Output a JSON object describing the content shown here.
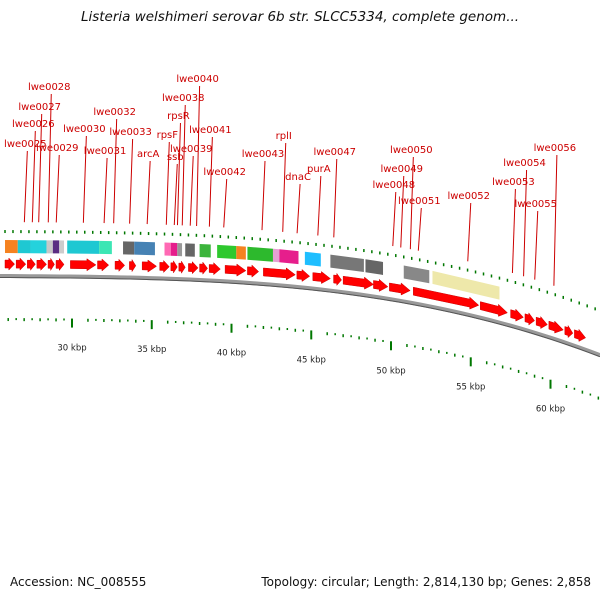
{
  "title": "Listeria welshimeri serovar 6b str. SLCC5334, complete genom...",
  "footer": {
    "accession": "Accession: NC_008555",
    "summary": "Topology: circular; Length: 2,814,130 bp; Genes: 2,858"
  },
  "colors": {
    "label": "#cc0000",
    "gene_arrow": "#ff0000",
    "tick": "#007700",
    "backbone": "#777777"
  },
  "axis": {
    "unit": "kbp",
    "ticks": [
      {
        "kbp": 30,
        "label": "30 kbp"
      },
      {
        "kbp": 35,
        "label": "35 kbp"
      },
      {
        "kbp": 40,
        "label": "40 kbp"
      },
      {
        "kbp": 45,
        "label": "45 kbp"
      },
      {
        "kbp": 50,
        "label": "50 kbp"
      },
      {
        "kbp": 55,
        "label": "55 kbp"
      },
      {
        "kbp": 60,
        "label": "60 kbp"
      }
    ]
  },
  "gene_labels": [
    {
      "text": "lwe0025",
      "kbp": 27.2
    },
    {
      "text": "lwe0026",
      "kbp": 27.7
    },
    {
      "text": "lwe0027",
      "kbp": 28.1
    },
    {
      "text": "lwe0028",
      "kbp": 28.7
    },
    {
      "text": "lwe0029",
      "kbp": 29.2
    },
    {
      "text": "lwe0030",
      "kbp": 30.9
    },
    {
      "text": "lwe0031",
      "kbp": 32.2
    },
    {
      "text": "lwe0032",
      "kbp": 32.8
    },
    {
      "text": "lwe0033",
      "kbp": 33.8
    },
    {
      "text": "arcA",
      "kbp": 34.9
    },
    {
      "text": "rpsF",
      "kbp": 36.1
    },
    {
      "text": "rpsR",
      "kbp": 36.8
    },
    {
      "text": "ssb",
      "kbp": 36.6
    },
    {
      "text": "lwe0038",
      "kbp": 37.1
    },
    {
      "text": "lwe0039",
      "kbp": 37.6
    },
    {
      "text": "lwe0040",
      "kbp": 38.0
    },
    {
      "text": "lwe0041",
      "kbp": 38.8
    },
    {
      "text": "lwe0042",
      "kbp": 39.7
    },
    {
      "text": "lwe0043",
      "kbp": 42.1
    },
    {
      "text": "rplI",
      "kbp": 43.4
    },
    {
      "text": "dnaC",
      "kbp": 44.3
    },
    {
      "text": "purA",
      "kbp": 45.6
    },
    {
      "text": "lwe0047",
      "kbp": 46.6
    },
    {
      "text": "lwe0048",
      "kbp": 50.3
    },
    {
      "text": "lwe0049",
      "kbp": 50.8
    },
    {
      "text": "lwe0050",
      "kbp": 51.4
    },
    {
      "text": "lwe0051",
      "kbp": 51.9
    },
    {
      "text": "lwe0052",
      "kbp": 55.0
    },
    {
      "text": "lwe0053",
      "kbp": 57.8
    },
    {
      "text": "lwe0054",
      "kbp": 58.5
    },
    {
      "text": "lwe0055",
      "kbp": 59.2
    },
    {
      "text": "lwe0056",
      "kbp": 60.4
    }
  ],
  "color_blocks": [
    {
      "start": 25.8,
      "end": 26.6,
      "color": "#f58220"
    },
    {
      "start": 26.6,
      "end": 27.4,
      "color": "#1ec8d2"
    },
    {
      "start": 27.4,
      "end": 28.4,
      "color": "#24d2dc"
    },
    {
      "start": 28.4,
      "end": 28.8,
      "color": "#c8c8c8"
    },
    {
      "start": 28.8,
      "end": 29.2,
      "color": "#5a2d82"
    },
    {
      "start": 29.2,
      "end": 29.5,
      "color": "#cccccc"
    },
    {
      "start": 29.7,
      "end": 31.7,
      "color": "#1ec8d2"
    },
    {
      "start": 31.7,
      "end": 32.5,
      "color": "#3ce6b4"
    },
    {
      "start": 33.2,
      "end": 33.9,
      "color": "#666666"
    },
    {
      "start": 33.9,
      "end": 35.2,
      "color": "#4682b4"
    },
    {
      "start": 35.8,
      "end": 36.2,
      "color": "#ff69b4"
    },
    {
      "start": 36.2,
      "end": 36.6,
      "color": "#e61e8c"
    },
    {
      "start": 36.6,
      "end": 36.9,
      "color": "#999999"
    },
    {
      "start": 37.1,
      "end": 37.7,
      "color": "#666666"
    },
    {
      "start": 38.0,
      "end": 38.7,
      "color": "#3cb43c"
    },
    {
      "start": 39.1,
      "end": 40.3,
      "color": "#2ec82e"
    },
    {
      "start": 40.3,
      "end": 40.9,
      "color": "#f58220"
    },
    {
      "start": 41.0,
      "end": 42.6,
      "color": "#2db92d"
    },
    {
      "start": 42.6,
      "end": 43.0,
      "color": "#e6a0d2"
    },
    {
      "start": 43.0,
      "end": 44.2,
      "color": "#e61e8c"
    },
    {
      "start": 44.6,
      "end": 45.6,
      "color": "#1ebeff"
    },
    {
      "start": 46.2,
      "end": 48.3,
      "color": "#777777"
    },
    {
      "start": 48.4,
      "end": 49.5,
      "color": "#666666"
    },
    {
      "start": 50.8,
      "end": 52.4,
      "color": "#888888"
    },
    {
      "start": 52.6,
      "end": 56.8,
      "color": "#eee8aa"
    }
  ],
  "gene_arrows": [
    {
      "start": 25.8,
      "end": 26.4
    },
    {
      "start": 26.5,
      "end": 27.1
    },
    {
      "start": 27.2,
      "end": 27.7
    },
    {
      "start": 27.8,
      "end": 28.4
    },
    {
      "start": 28.5,
      "end": 28.9
    },
    {
      "start": 29.0,
      "end": 29.5
    },
    {
      "start": 29.9,
      "end": 31.5
    },
    {
      "start": 31.6,
      "end": 32.3
    },
    {
      "start": 32.7,
      "end": 33.3
    },
    {
      "start": 33.6,
      "end": 34.0
    },
    {
      "start": 34.4,
      "end": 35.3
    },
    {
      "start": 35.5,
      "end": 36.1
    },
    {
      "start": 36.2,
      "end": 36.6
    },
    {
      "start": 36.7,
      "end": 37.1
    },
    {
      "start": 37.3,
      "end": 37.9
    },
    {
      "start": 38.0,
      "end": 38.5
    },
    {
      "start": 38.6,
      "end": 39.3
    },
    {
      "start": 39.6,
      "end": 40.9
    },
    {
      "start": 41.0,
      "end": 41.7
    },
    {
      "start": 42.0,
      "end": 44.0
    },
    {
      "start": 44.1,
      "end": 44.9
    },
    {
      "start": 45.1,
      "end": 46.2
    },
    {
      "start": 46.4,
      "end": 46.9
    },
    {
      "start": 47.0,
      "end": 48.9
    },
    {
      "start": 48.9,
      "end": 49.8
    },
    {
      "start": 49.9,
      "end": 51.2
    },
    {
      "start": 51.4,
      "end": 55.5
    },
    {
      "start": 55.6,
      "end": 57.3
    },
    {
      "start": 57.5,
      "end": 58.3
    },
    {
      "start": 58.4,
      "end": 59.0
    },
    {
      "start": 59.1,
      "end": 59.8
    },
    {
      "start": 59.9,
      "end": 60.8
    },
    {
      "start": 60.9,
      "end": 61.4
    },
    {
      "start": 61.5,
      "end": 62.2
    }
  ]
}
